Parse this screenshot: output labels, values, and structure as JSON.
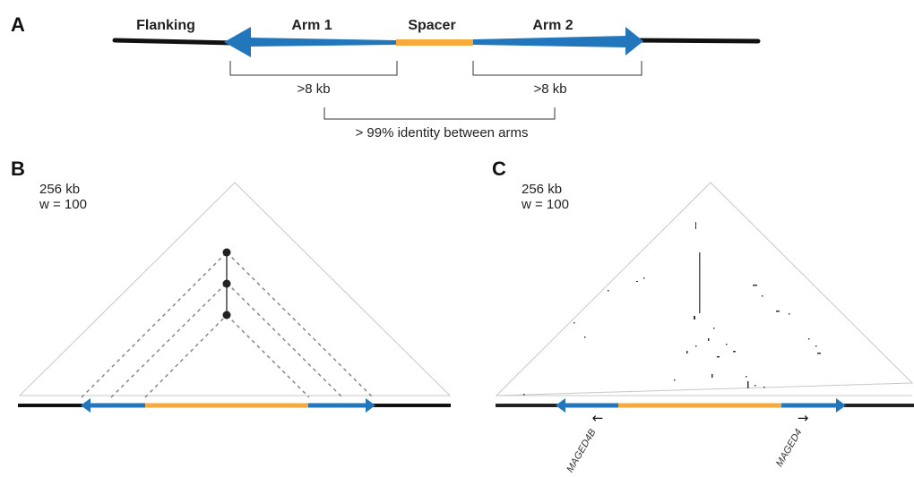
{
  "panel_a": {
    "letter": "A",
    "labels": {
      "flanking": "Flanking",
      "arm1": "Arm 1",
      "spacer": "Spacer",
      "arm2": "Arm 2"
    },
    "arm1_length": ">8 kb",
    "arm2_length": ">8 kb",
    "identity": "> 99% identity between arms"
  },
  "panel_b": {
    "letter": "B",
    "window_size": "256 kb",
    "w_param": "w = 100"
  },
  "panel_c": {
    "letter": "C",
    "window_size": "256 kb",
    "w_param": "w = 100",
    "gene_left": "MAGED4B",
    "gene_right": "MAGED4",
    "arrow_left": "←",
    "arrow_right": "→"
  },
  "colors": {
    "arm": "#2176bc",
    "spacer": "#f7a93b",
    "flanking": "#111111",
    "triangle": "#c8c8c8"
  }
}
